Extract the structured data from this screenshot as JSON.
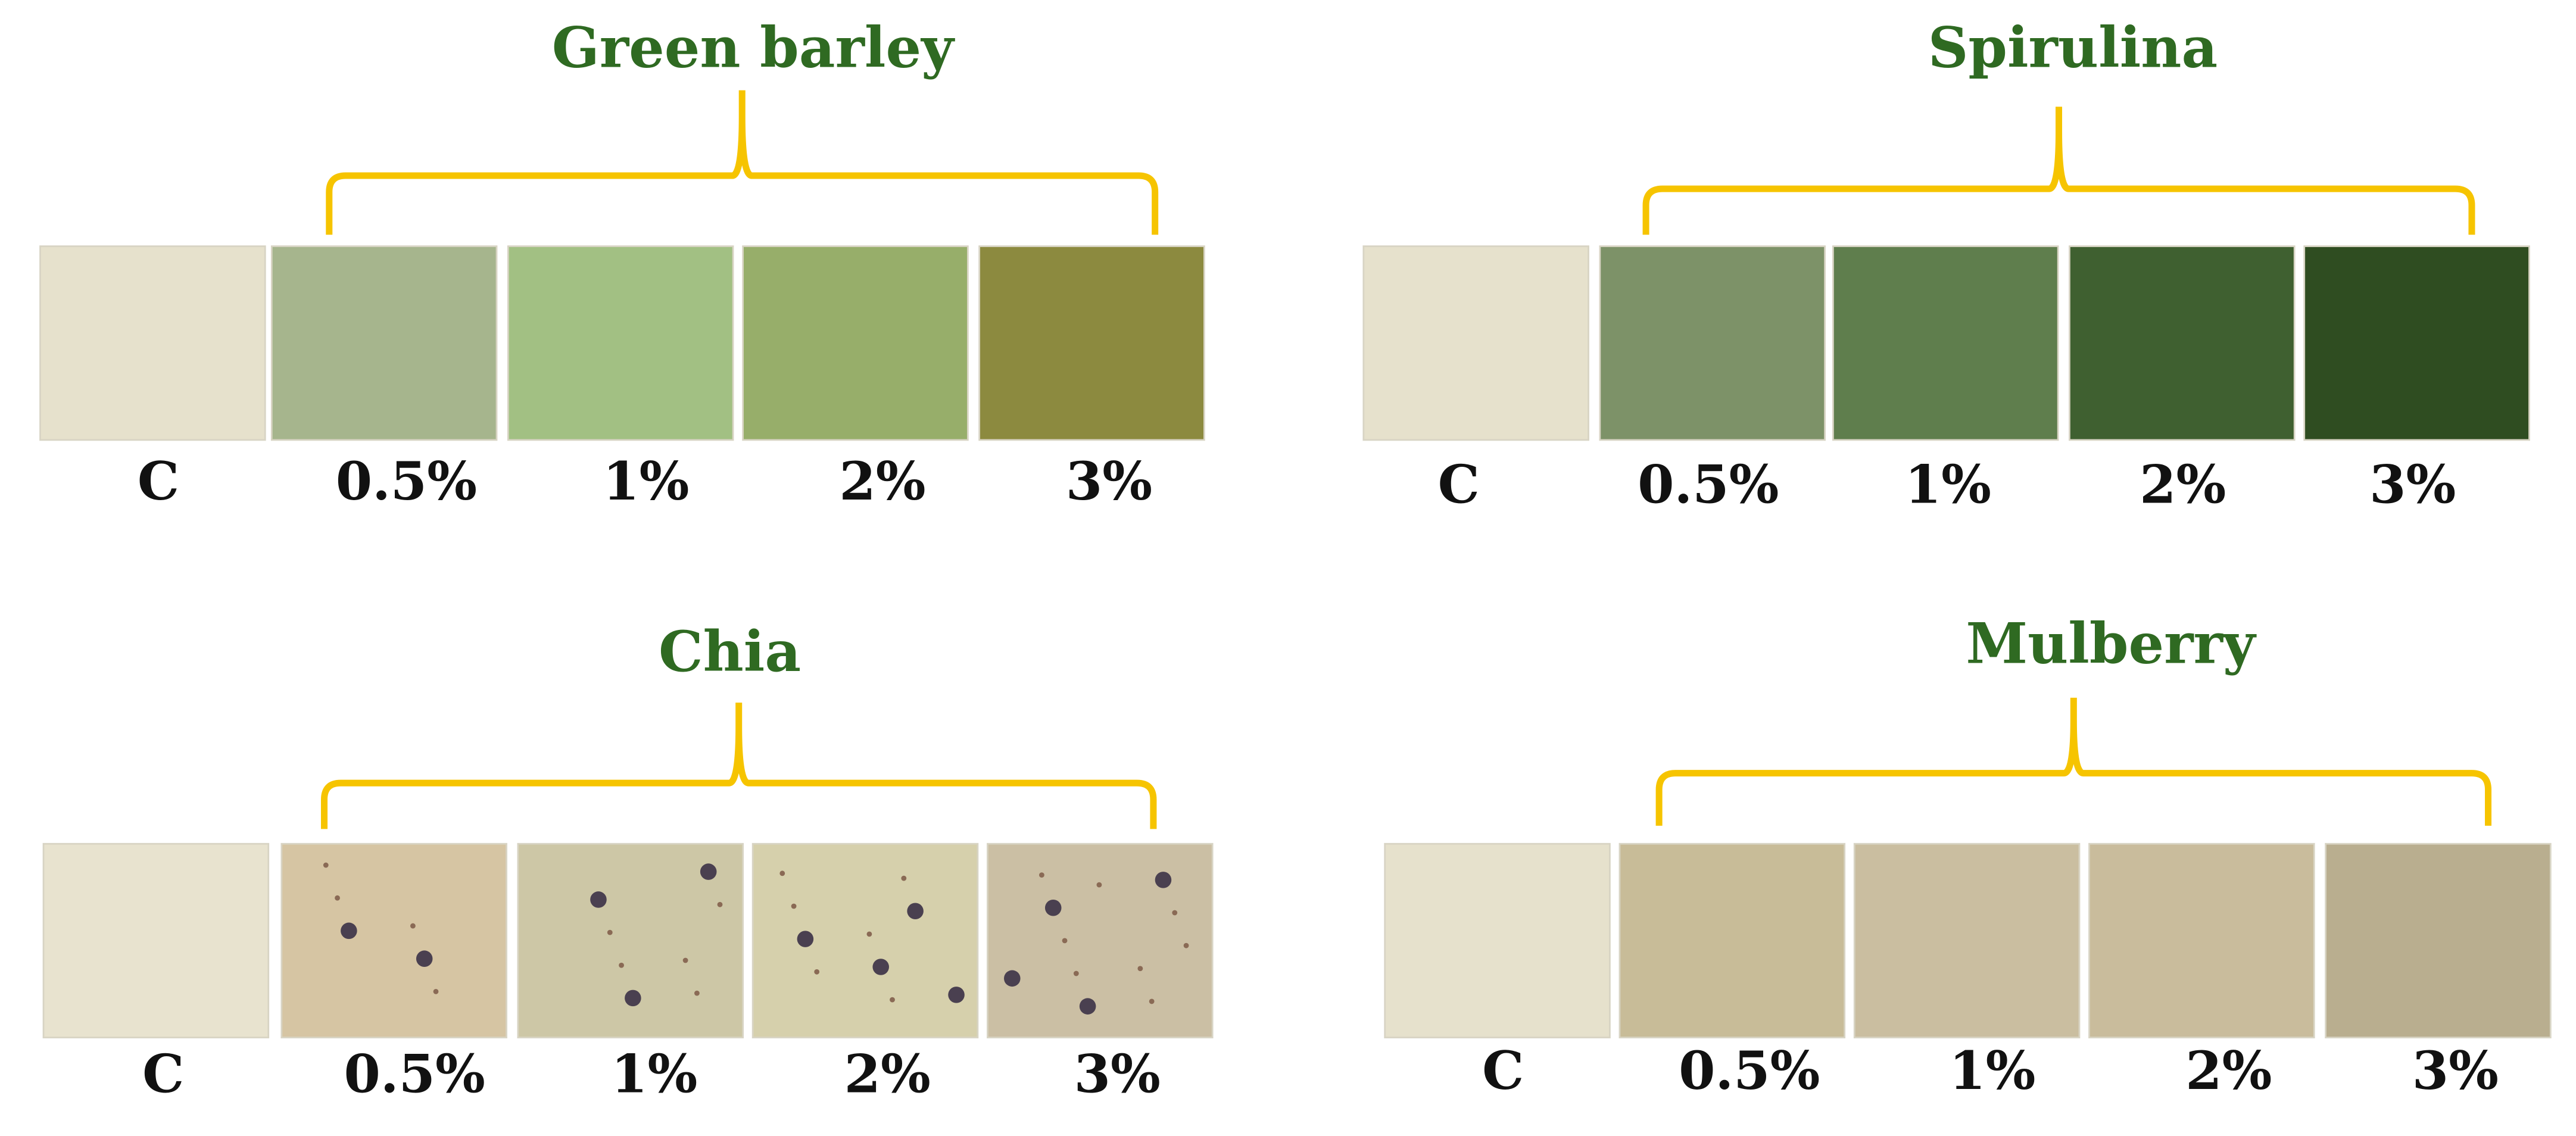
{
  "panels": [
    {
      "title": "Green barley",
      "labels": [
        "C",
        "0.5%",
        "1%",
        "2%",
        "3%"
      ]
    },
    {
      "title": "Spirulina",
      "labels": [
        "C",
        "0.5%",
        "1%",
        "2%",
        "3%"
      ]
    },
    {
      "title": "Chia",
      "labels": [
        "C",
        "0.5%",
        "1%",
        "2%",
        "3%"
      ]
    },
    {
      "title": "Mulberry",
      "labels": [
        "C",
        "0.5%",
        "1%",
        "2%",
        "3%"
      ]
    }
  ]
}
